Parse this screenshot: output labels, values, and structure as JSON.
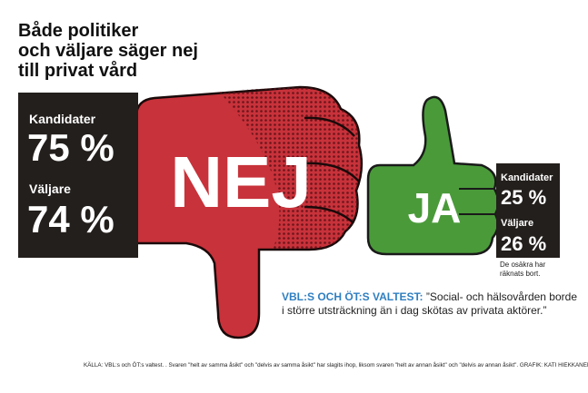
{
  "title": [
    "Både politiker",
    "och väljare säger nej",
    "till privat vård"
  ],
  "nej": {
    "label": "NEJ",
    "rows": [
      {
        "group": "Kandidater",
        "value": "75 %"
      },
      {
        "group": "Väljare",
        "value": "74 %"
      }
    ]
  },
  "ja": {
    "label": "JA",
    "rows": [
      {
        "group": "Kandidater",
        "value": "25 %"
      },
      {
        "group": "Väljare",
        "value": "26 %"
      }
    ],
    "note": [
      "De osäkra har",
      "räknats bort."
    ]
  },
  "question": {
    "source": "VBL:S OCH ÖT:S VALTEST:",
    "text": [
      "”Social- och hälsovården borde",
      "i större utsträckning än i dag skötas av privata aktörer.”"
    ]
  },
  "footnote": "KÄLLA: VBL:s och ÖT:s valtest. . Svaren \"helt av samma åsikt\" och \"delvis av samma åsikt\" har slagits ihop, liksom svaren \"helt av annan åsikt\" och \"delvis av annan åsikt\". GRAFIK: KATI HIEKKANEN"
}
